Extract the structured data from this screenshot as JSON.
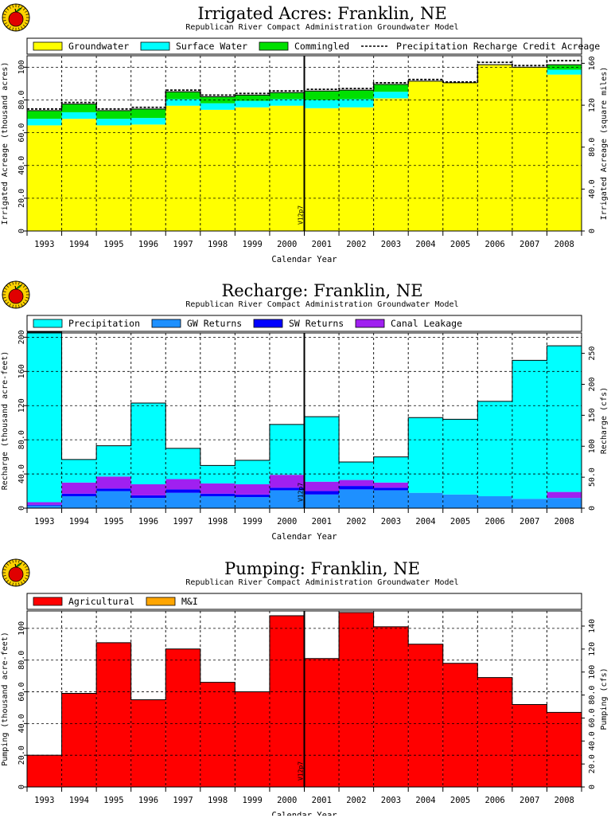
{
  "chart_data": [
    {
      "type": "area",
      "title": "Irrigated Acres: Franklin, NE",
      "subtitle": "Republican River Compact Administration Groundwater Model",
      "xlabel": "Calendar Year",
      "ylabel": "Irrigated Acreage (thousand acres)",
      "y2label": "Irrigated Acreage (square miles)",
      "categories": [
        "1993",
        "1994",
        "1995",
        "1996",
        "1997",
        "1998",
        "1999",
        "2000",
        "2001",
        "2002",
        "2003",
        "2004",
        "2005",
        "2006",
        "2007",
        "2008"
      ],
      "ylim": [
        0,
        107
      ],
      "yticks": [
        "0",
        "20.0",
        "40.0",
        "60.0",
        "80.0",
        "100"
      ],
      "y2ticks": [
        "0",
        "40.0",
        "80.0",
        "120",
        "160"
      ],
      "y2_scale": 1.5625,
      "marker_label": "V12p7",
      "marker_after": "2000",
      "grid": true,
      "legend": [
        "Groundwater",
        "Surface Water",
        "Commingled",
        "Precipitation Recharge Credit Acreage"
      ],
      "series": [
        {
          "name": "Groundwater",
          "color": "#ffff00",
          "values": [
            64.5,
            68.5,
            64.5,
            65,
            76.5,
            74,
            75.5,
            76.5,
            75,
            75.5,
            81,
            91.5,
            90.5,
            101.5,
            100,
            95.5
          ]
        },
        {
          "name": "Surface Water",
          "color": "#00ffff",
          "values": [
            4,
            4,
            4,
            4,
            4,
            4,
            4,
            4,
            5,
            5,
            4,
            0,
            0,
            0,
            0,
            3
          ]
        },
        {
          "name": "Commingled",
          "color": "#00e000",
          "values": [
            5,
            5,
            5,
            5.5,
            4.5,
            4,
            3.5,
            4,
            5.5,
            5.5,
            4.5,
            0,
            0,
            0,
            0,
            3
          ]
        }
      ],
      "dashed_line": {
        "name": "Precipitation Recharge Credit Acreage",
        "values": [
          74.5,
          78.5,
          74.5,
          75.5,
          86,
          83,
          84,
          85.5,
          86.5,
          87,
          90.5,
          92.5,
          91,
          103,
          101,
          104
        ]
      }
    },
    {
      "type": "area",
      "title": "Recharge: Franklin, NE",
      "subtitle": "Republican River Compact Administration Groundwater Model",
      "xlabel": "Calendar Year",
      "ylabel": "Recharge (thousand acre-feet)",
      "y2label": "Recharge (cfs)",
      "categories": [
        "1993",
        "1994",
        "1995",
        "1996",
        "1997",
        "1998",
        "1999",
        "2000",
        "2001",
        "2002",
        "2003",
        "2004",
        "2005",
        "2006",
        "2007",
        "2008"
      ],
      "ylim": [
        0,
        205
      ],
      "yticks": [
        "0",
        "40.0",
        "80.0",
        "120",
        "160",
        "200"
      ],
      "y2ticks": [
        "0",
        "50.0",
        "100",
        "150",
        "200",
        "250"
      ],
      "y2_scale": 1.38,
      "marker_label": "V12p7",
      "marker_after": "2000",
      "grid": true,
      "legend": [
        "Precipitation",
        "GW Returns",
        "SW Returns",
        "Canal Leakage"
      ],
      "series": [
        {
          "name": "GW Returns",
          "color": "#1e90ff",
          "values": [
            3,
            14,
            20,
            12,
            18,
            14,
            13,
            21,
            16,
            22,
            21,
            18,
            16,
            14,
            11,
            12
          ]
        },
        {
          "name": "SW Returns",
          "color": "#0000ff",
          "values": [
            1,
            3,
            3,
            3,
            4,
            3,
            3,
            3,
            4,
            4,
            3,
            0,
            0,
            0,
            0,
            0
          ]
        },
        {
          "name": "Canal Leakage",
          "color": "#a020f0",
          "values": [
            3,
            13,
            14,
            13,
            12,
            12,
            12,
            15,
            11,
            7,
            6,
            0,
            0,
            0,
            0,
            7
          ]
        },
        {
          "name": "Precipitation",
          "color": "#00ffff",
          "values": [
            199,
            27,
            36,
            95,
            36,
            21,
            28,
            59,
            76,
            21,
            30,
            88,
            88,
            111,
            162,
            171
          ]
        }
      ]
    },
    {
      "type": "area",
      "title": "Pumping: Franklin, NE",
      "subtitle": "Republican River Compact Administration Groundwater Model",
      "xlabel": "Calendar Year",
      "ylabel": "Pumping (thousand acre-feet)",
      "y2label": "Pumping (cfs)",
      "categories": [
        "1993",
        "1994",
        "1995",
        "1996",
        "1997",
        "1998",
        "1999",
        "2000",
        "2001",
        "2002",
        "2003",
        "2004",
        "2005",
        "2006",
        "2007",
        "2008"
      ],
      "ylim": [
        0,
        111
      ],
      "yticks": [
        "0",
        "20.0",
        "40.0",
        "60.0",
        "80.0",
        "100"
      ],
      "y2ticks": [
        "0",
        "20.0",
        "40.0",
        "60.0",
        "80.0",
        "100",
        "120",
        "140"
      ],
      "y2_scale": 1.38,
      "marker_label": "V12p7",
      "marker_after": "2000",
      "grid": true,
      "legend": [
        "Agricultural",
        "M&I"
      ],
      "series": [
        {
          "name": "Agricultural",
          "color": "#ff0000",
          "values": [
            20,
            59,
            91,
            55,
            87,
            66,
            60,
            108,
            81,
            110,
            101,
            90,
            78,
            69,
            52,
            47
          ]
        },
        {
          "name": "M&I",
          "color": "#ffa500",
          "values": [
            0,
            0,
            0,
            0,
            0,
            0,
            0,
            0,
            0,
            0,
            0,
            0,
            0,
            0,
            0,
            0
          ]
        }
      ]
    }
  ]
}
